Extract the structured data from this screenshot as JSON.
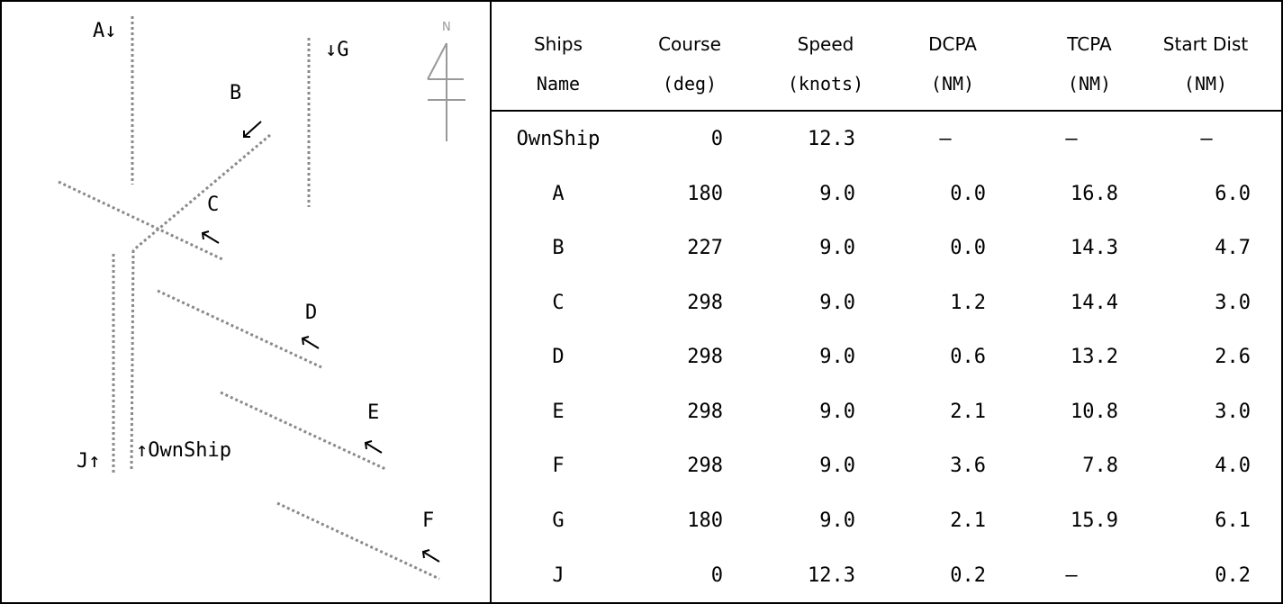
{
  "diagram": {
    "ship_labels": {
      "A": "A↓",
      "B": "B",
      "C": "C",
      "D": "D",
      "E": "E",
      "F": "F",
      "G": "↓G",
      "J": "J↑",
      "OwnShip": "↑OwnShip"
    },
    "north_label": "N",
    "icons": {
      "north": "north-arrow-icon",
      "heading": "heading-arrow-icon"
    },
    "colors": {
      "track": "#8a8a8a",
      "north_arrow": "#999999",
      "text": "#000000"
    }
  },
  "table": {
    "headers": [
      {
        "title": "Ships",
        "unit": "Name"
      },
      {
        "title": "Course",
        "unit": "(deg)"
      },
      {
        "title": "Speed",
        "unit": "(knots)"
      },
      {
        "title": "DCPA",
        "unit": "(NM)"
      },
      {
        "title": "TCPA",
        "unit": "(NM)"
      },
      {
        "title": "Start Dist",
        "unit": "(NM)"
      }
    ],
    "rows": [
      {
        "name": "OwnShip",
        "course": "0",
        "speed": "12.3",
        "dcpa": "–",
        "tcpa": "–",
        "dist": "–"
      },
      {
        "name": "A",
        "course": "180",
        "speed": "9.0",
        "dcpa": "0.0",
        "tcpa": "16.8",
        "dist": "6.0"
      },
      {
        "name": "B",
        "course": "227",
        "speed": "9.0",
        "dcpa": "0.0",
        "tcpa": "14.3",
        "dist": "4.7"
      },
      {
        "name": "C",
        "course": "298",
        "speed": "9.0",
        "dcpa": "1.2",
        "tcpa": "14.4",
        "dist": "3.0"
      },
      {
        "name": "D",
        "course": "298",
        "speed": "9.0",
        "dcpa": "0.6",
        "tcpa": "13.2",
        "dist": "2.6"
      },
      {
        "name": "E",
        "course": "298",
        "speed": "9.0",
        "dcpa": "2.1",
        "tcpa": "10.8",
        "dist": "3.0"
      },
      {
        "name": "F",
        "course": "298",
        "speed": "9.0",
        "dcpa": "3.6",
        "tcpa": "7.8",
        "dist": "4.0"
      },
      {
        "name": "G",
        "course": "180",
        "speed": "9.0",
        "dcpa": "2.1",
        "tcpa": "15.9",
        "dist": "6.1"
      },
      {
        "name": "J",
        "course": "0",
        "speed": "12.3",
        "dcpa": "0.2",
        "tcpa": "–",
        "dist": "0.2"
      }
    ]
  }
}
